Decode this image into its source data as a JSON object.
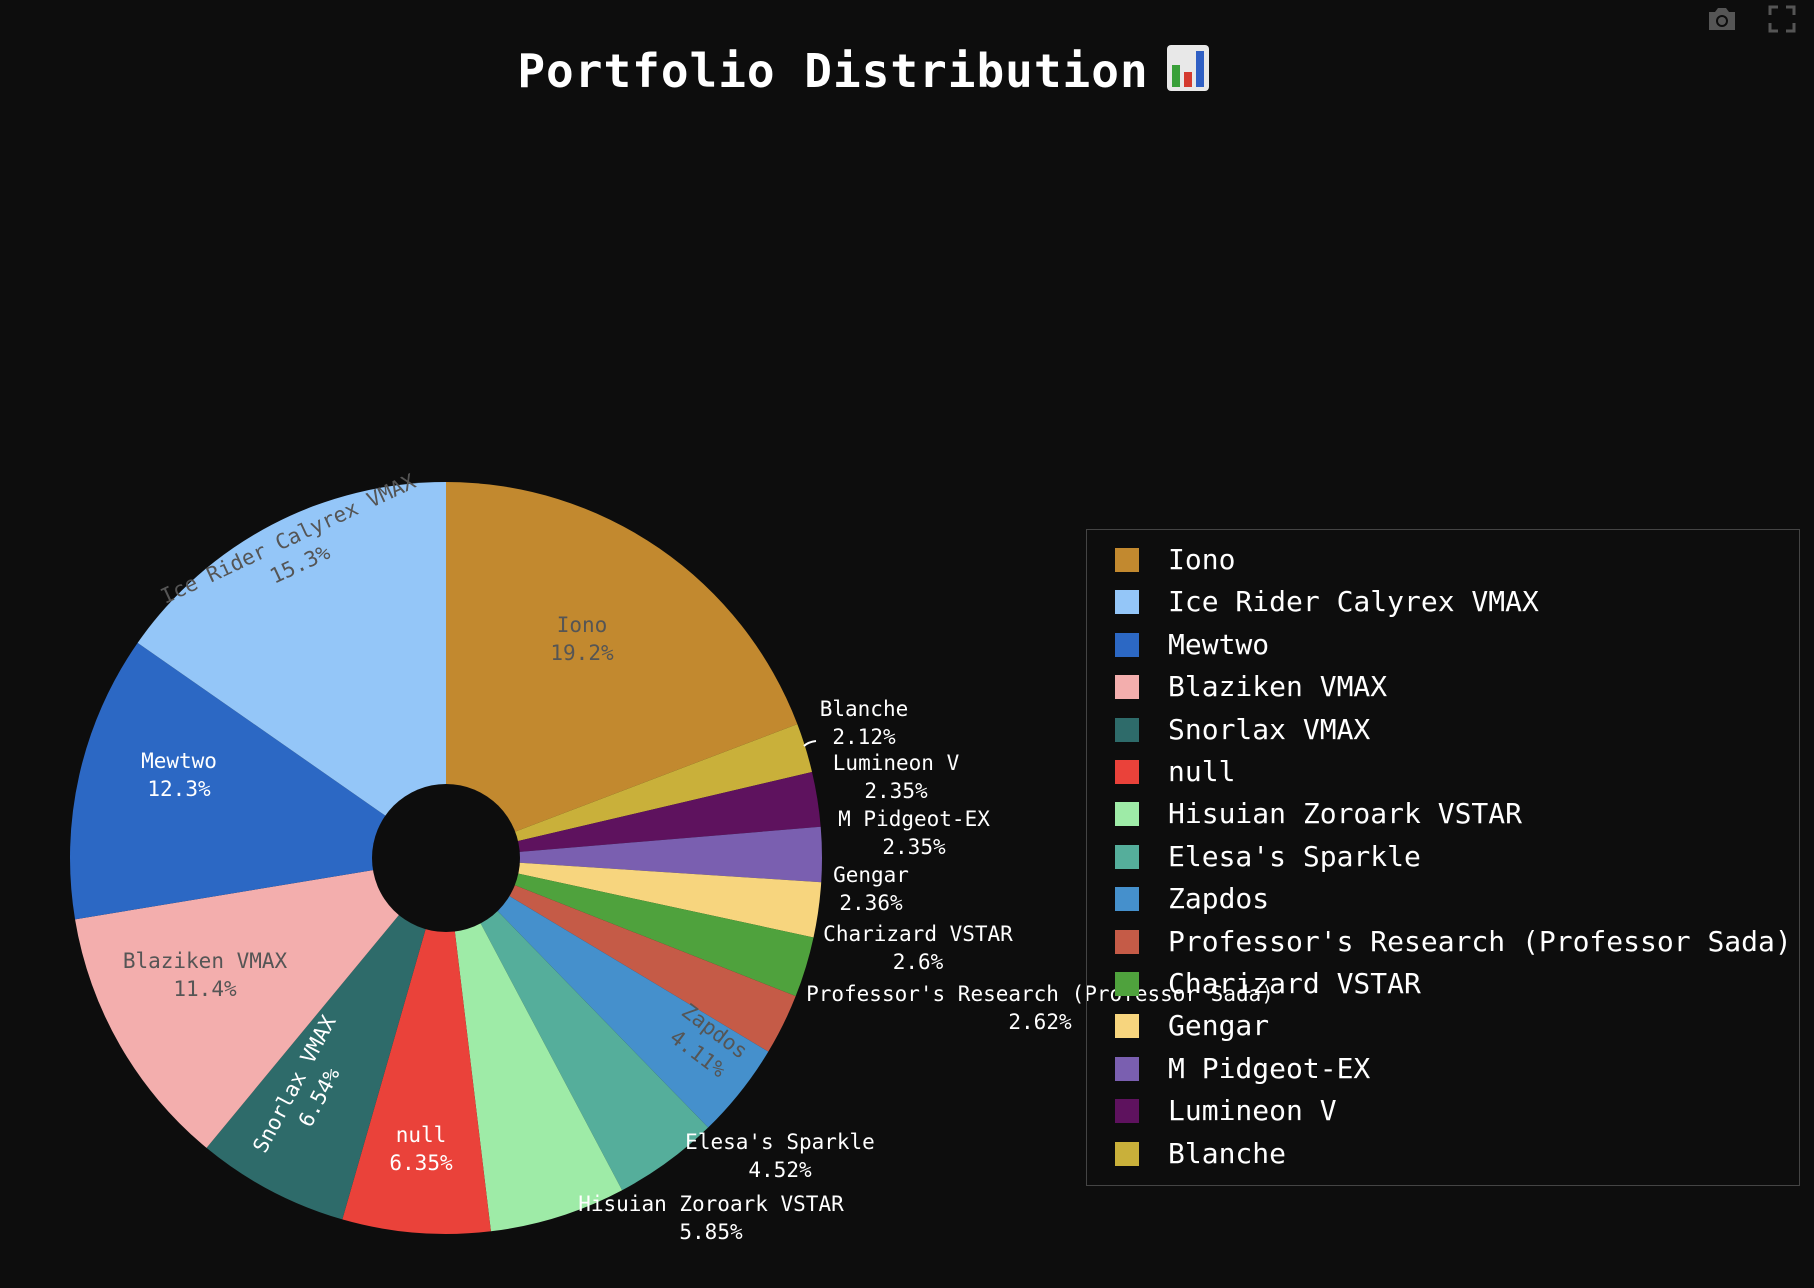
{
  "title": "Portfolio Distribution",
  "title_icon": "bar-chart-emoji-icon",
  "toolbar": [
    {
      "name": "camera-icon",
      "label": "Download plot as a png"
    },
    {
      "name": "fullscreen-icon",
      "label": "Autoscale"
    }
  ],
  "chart_data": {
    "type": "pie",
    "hole": true,
    "slices": [
      {
        "label": "Iono",
        "value": 19.2,
        "text": "19.2%",
        "color": "#c2892f",
        "text_color": "#555555"
      },
      {
        "label": "Blanche",
        "value": 2.12,
        "text": "2.12%",
        "color": "#c9b03a",
        "text_color": "#ffffff"
      },
      {
        "label": "Lumineon V",
        "value": 2.35,
        "text": "2.35%",
        "color": "#5e125e",
        "text_color": "#ffffff"
      },
      {
        "label": "M Pidgeot-EX",
        "value": 2.35,
        "text": "2.35%",
        "color": "#7a5fb0",
        "text_color": "#ffffff"
      },
      {
        "label": "Gengar",
        "value": 2.36,
        "text": "2.36%",
        "color": "#f7d57e",
        "text_color": "#ffffff"
      },
      {
        "label": "Charizard VSTAR",
        "value": 2.6,
        "text": "2.6%",
        "color": "#4fa23d",
        "text_color": "#ffffff"
      },
      {
        "label": "Professor's Research (Professor Sada)",
        "value": 2.62,
        "text": "2.62%",
        "color": "#c55b47",
        "text_color": "#ffffff"
      },
      {
        "label": "Zapdos",
        "value": 4.11,
        "text": "4.11%",
        "color": "#4590cc",
        "text_color": "#555555"
      },
      {
        "label": "Elesa's Sparkle",
        "value": 4.52,
        "text": "4.52%",
        "color": "#55ae9b",
        "text_color": "#ffffff"
      },
      {
        "label": "Hisuian Zoroark VSTAR",
        "value": 5.85,
        "text": "5.85%",
        "color": "#9eeba7",
        "text_color": "#ffffff"
      },
      {
        "label": "null",
        "value": 6.35,
        "text": "6.35%",
        "color": "#ea423a",
        "text_color": "#ffffff"
      },
      {
        "label": "Snorlax VMAX",
        "value": 6.54,
        "text": "6.54%",
        "color": "#2e6b6a",
        "text_color": "#ffffff"
      },
      {
        "label": "Blaziken VMAX",
        "value": 11.4,
        "text": "11.4%",
        "color": "#f3aead",
        "text_color": "#555555"
      },
      {
        "label": "Mewtwo",
        "value": 12.3,
        "text": "12.3%",
        "color": "#2c68c4",
        "text_color": "#ffffff"
      },
      {
        "label": "Ice Rider Calyrex VMAX",
        "value": 15.3,
        "text": "15.3%",
        "color": "#94c6f8",
        "text_color": "#555555"
      }
    ],
    "legend": {
      "position": "right",
      "entries": [
        {
          "label": "Iono",
          "color": "#c2892f"
        },
        {
          "label": "Ice Rider Calyrex VMAX",
          "color": "#94c6f8"
        },
        {
          "label": "Mewtwo",
          "color": "#2c68c4"
        },
        {
          "label": "Blaziken VMAX",
          "color": "#f3aead"
        },
        {
          "label": "Snorlax VMAX",
          "color": "#2e6b6a"
        },
        {
          "label": "null",
          "color": "#ea423a"
        },
        {
          "label": "Hisuian Zoroark VSTAR",
          "color": "#9eeba7"
        },
        {
          "label": "Elesa's Sparkle",
          "color": "#55ae9b"
        },
        {
          "label": "Zapdos",
          "color": "#4590cc"
        },
        {
          "label": "Professor's Research (Professor Sada)",
          "color": "#c55b47"
        },
        {
          "label": "Charizard VSTAR",
          "color": "#4fa23d"
        },
        {
          "label": "Gengar",
          "color": "#f7d57e"
        },
        {
          "label": "M Pidgeot-EX",
          "color": "#7a5fb0"
        },
        {
          "label": "Lumineon V",
          "color": "#5e125e"
        },
        {
          "label": "Blanche",
          "color": "#c9b03a"
        }
      ]
    }
  },
  "colors": {
    "background": "#0d0d0d",
    "text": "#ffffff",
    "legend_border": "#444444"
  }
}
